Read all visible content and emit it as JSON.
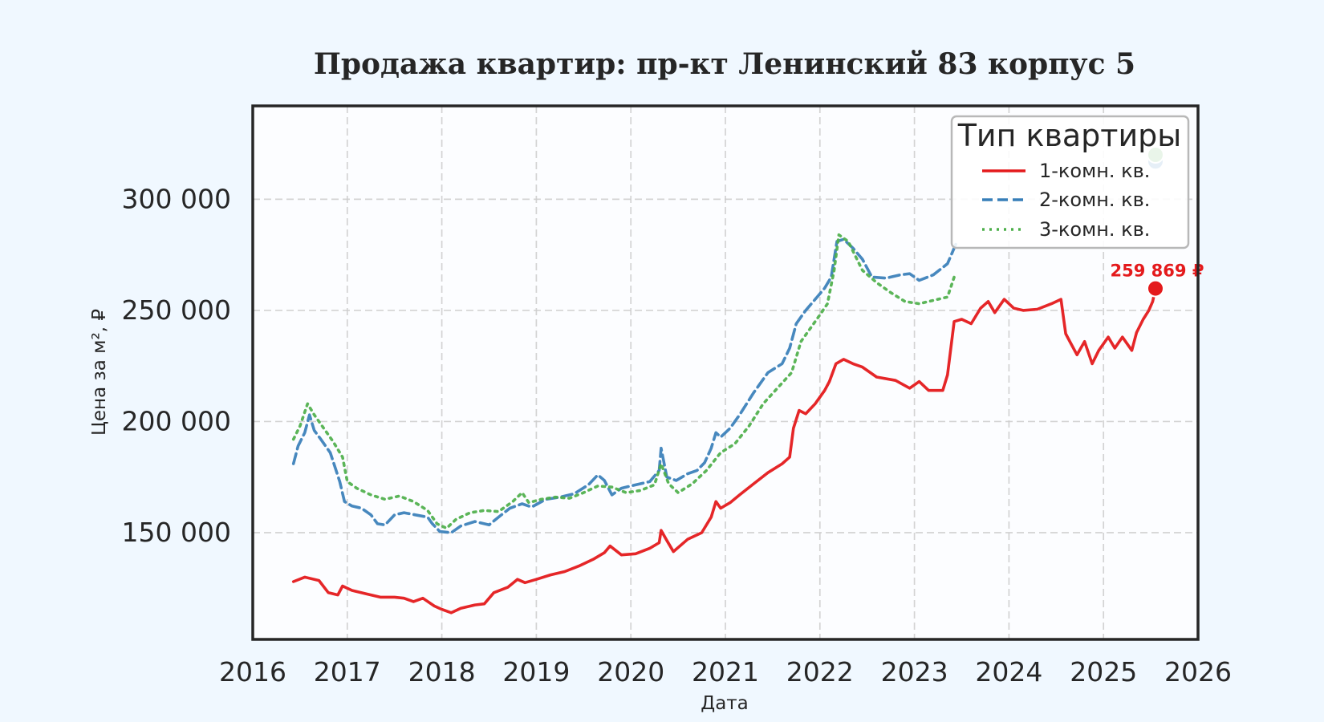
{
  "chart_data": {
    "type": "line",
    "title": "Продажа квартир: пр-кт Ленинский 83 корпус 5",
    "xlabel": "Дата",
    "ylabel": "Цена за м², ₽",
    "xlim": [
      2016,
      2026
    ],
    "ylim": [
      102000,
      342000
    ],
    "x_ticks": [
      2016,
      2017,
      2018,
      2019,
      2020,
      2021,
      2022,
      2023,
      2024,
      2025,
      2026
    ],
    "x_tick_labels": [
      "2016",
      "2017",
      "2018",
      "2019",
      "2020",
      "2021",
      "2022",
      "2023",
      "2024",
      "2025",
      "2026"
    ],
    "y_ticks": [
      150000,
      200000,
      250000,
      300000
    ],
    "y_tick_labels": [
      "150 000",
      "200 000",
      "250 000",
      "300 000"
    ],
    "grid": true,
    "legend_title": "Тип квартиры",
    "legend_position": "top-right",
    "series": [
      {
        "name": "1-комн. кв.",
        "color": "#e41a1c",
        "style": "solid",
        "points": [
          [
            2016.43,
            128000
          ],
          [
            2016.55,
            130000
          ],
          [
            2016.7,
            128500
          ],
          [
            2016.8,
            123000
          ],
          [
            2016.9,
            122000
          ],
          [
            2016.95,
            126000
          ],
          [
            2017.05,
            124000
          ],
          [
            2017.2,
            122500
          ],
          [
            2017.35,
            121000
          ],
          [
            2017.5,
            121000
          ],
          [
            2017.6,
            120500
          ],
          [
            2017.7,
            119000
          ],
          [
            2017.8,
            120500
          ],
          [
            2017.92,
            117000
          ],
          [
            2018.0,
            115500
          ],
          [
            2018.1,
            114000
          ],
          [
            2018.2,
            116000
          ],
          [
            2018.35,
            117500
          ],
          [
            2018.45,
            118000
          ],
          [
            2018.55,
            123000
          ],
          [
            2018.7,
            125500
          ],
          [
            2018.8,
            129000
          ],
          [
            2018.88,
            127500
          ],
          [
            2019.0,
            129000
          ],
          [
            2019.15,
            131000
          ],
          [
            2019.3,
            132500
          ],
          [
            2019.45,
            135000
          ],
          [
            2019.6,
            138000
          ],
          [
            2019.72,
            141000
          ],
          [
            2019.78,
            144000
          ],
          [
            2019.9,
            140000
          ],
          [
            2020.05,
            140500
          ],
          [
            2020.2,
            143000
          ],
          [
            2020.3,
            145500
          ],
          [
            2020.32,
            151000
          ],
          [
            2020.38,
            146500
          ],
          [
            2020.45,
            141500
          ],
          [
            2020.6,
            147000
          ],
          [
            2020.75,
            150000
          ],
          [
            2020.85,
            157000
          ],
          [
            2020.9,
            164000
          ],
          [
            2020.95,
            161000
          ],
          [
            2021.05,
            163500
          ],
          [
            2021.15,
            167000
          ],
          [
            2021.3,
            172000
          ],
          [
            2021.45,
            177000
          ],
          [
            2021.6,
            181000
          ],
          [
            2021.68,
            184000
          ],
          [
            2021.72,
            197000
          ],
          [
            2021.78,
            205000
          ],
          [
            2021.85,
            203500
          ],
          [
            2021.95,
            208000
          ],
          [
            2022.05,
            214000
          ],
          [
            2022.1,
            218000
          ],
          [
            2022.17,
            226000
          ],
          [
            2022.25,
            228000
          ],
          [
            2022.35,
            226000
          ],
          [
            2022.45,
            224500
          ],
          [
            2022.6,
            220000
          ],
          [
            2022.8,
            218500
          ],
          [
            2022.95,
            215000
          ],
          [
            2023.05,
            218000
          ],
          [
            2023.15,
            214000
          ],
          [
            2023.3,
            214000
          ],
          [
            2023.35,
            221000
          ],
          [
            2023.42,
            245000
          ],
          [
            2023.5,
            246000
          ],
          [
            2023.6,
            244000
          ],
          [
            2023.7,
            251000
          ],
          [
            2023.78,
            254000
          ],
          [
            2023.85,
            249000
          ],
          [
            2023.95,
            255000
          ],
          [
            2024.05,
            251000
          ],
          [
            2024.15,
            250000
          ],
          [
            2024.3,
            250500
          ],
          [
            2024.45,
            253000
          ],
          [
            2024.55,
            255000
          ],
          [
            2024.6,
            239500
          ],
          [
            2024.65,
            235500
          ],
          [
            2024.72,
            230000
          ],
          [
            2024.8,
            236000
          ],
          [
            2024.88,
            226000
          ],
          [
            2024.95,
            232000
          ],
          [
            2025.05,
            238000
          ],
          [
            2025.12,
            233000
          ],
          [
            2025.2,
            238000
          ],
          [
            2025.3,
            232000
          ],
          [
            2025.35,
            240000
          ],
          [
            2025.42,
            246000
          ],
          [
            2025.48,
            250000
          ],
          [
            2025.52,
            254000
          ],
          [
            2025.55,
            259869
          ]
        ]
      },
      {
        "name": "2-комн. кв.",
        "color": "#377eb8",
        "style": "dashed",
        "points": [
          [
            2016.43,
            181000
          ],
          [
            2016.48,
            189000
          ],
          [
            2016.55,
            195000
          ],
          [
            2016.6,
            203000
          ],
          [
            2016.65,
            196000
          ],
          [
            2016.72,
            192000
          ],
          [
            2016.82,
            186000
          ],
          [
            2016.92,
            173000
          ],
          [
            2016.97,
            164000
          ],
          [
            2017.05,
            162000
          ],
          [
            2017.15,
            161000
          ],
          [
            2017.25,
            158000
          ],
          [
            2017.32,
            154000
          ],
          [
            2017.4,
            153500
          ],
          [
            2017.5,
            158000
          ],
          [
            2017.6,
            159000
          ],
          [
            2017.72,
            158000
          ],
          [
            2017.85,
            157000
          ],
          [
            2017.9,
            154000
          ],
          [
            2017.98,
            150500
          ],
          [
            2018.1,
            150000
          ],
          [
            2018.2,
            153000
          ],
          [
            2018.35,
            155000
          ],
          [
            2018.5,
            153500
          ],
          [
            2018.6,
            157000
          ],
          [
            2018.72,
            161000
          ],
          [
            2018.85,
            163000
          ],
          [
            2018.95,
            161500
          ],
          [
            2019.1,
            165000
          ],
          [
            2019.25,
            166000
          ],
          [
            2019.4,
            167500
          ],
          [
            2019.55,
            171500
          ],
          [
            2019.65,
            176000
          ],
          [
            2019.72,
            173500
          ],
          [
            2019.8,
            167000
          ],
          [
            2019.9,
            170000
          ],
          [
            2020.05,
            171500
          ],
          [
            2020.2,
            173000
          ],
          [
            2020.3,
            178000
          ],
          [
            2020.32,
            188000
          ],
          [
            2020.38,
            175000
          ],
          [
            2020.48,
            173500
          ],
          [
            2020.6,
            176500
          ],
          [
            2020.7,
            178000
          ],
          [
            2020.78,
            181500
          ],
          [
            2020.85,
            188000
          ],
          [
            2020.9,
            195000
          ],
          [
            2020.95,
            193000
          ],
          [
            2021.05,
            197000
          ],
          [
            2021.15,
            203000
          ],
          [
            2021.3,
            213000
          ],
          [
            2021.45,
            222000
          ],
          [
            2021.6,
            226000
          ],
          [
            2021.68,
            233000
          ],
          [
            2021.75,
            244000
          ],
          [
            2021.85,
            250000
          ],
          [
            2021.95,
            255000
          ],
          [
            2022.05,
            260000
          ],
          [
            2022.12,
            265000
          ],
          [
            2022.18,
            281000
          ],
          [
            2022.25,
            282000
          ],
          [
            2022.35,
            278000
          ],
          [
            2022.45,
            273000
          ],
          [
            2022.55,
            265000
          ],
          [
            2022.7,
            264500
          ],
          [
            2022.85,
            266000
          ],
          [
            2022.95,
            266500
          ],
          [
            2023.05,
            263500
          ],
          [
            2023.2,
            266000
          ],
          [
            2023.35,
            271000
          ],
          [
            2023.45,
            281000
          ]
        ]
      },
      {
        "name": "3-комн. кв.",
        "color": "#4daf4a",
        "style": "dotted",
        "points": [
          [
            2016.43,
            192000
          ],
          [
            2016.5,
            198000
          ],
          [
            2016.58,
            208000
          ],
          [
            2016.65,
            203000
          ],
          [
            2016.75,
            197000
          ],
          [
            2016.85,
            191000
          ],
          [
            2016.95,
            184000
          ],
          [
            2017.0,
            173000
          ],
          [
            2017.1,
            170000
          ],
          [
            2017.25,
            167000
          ],
          [
            2017.4,
            165000
          ],
          [
            2017.55,
            166500
          ],
          [
            2017.7,
            164000
          ],
          [
            2017.85,
            160000
          ],
          [
            2017.95,
            154000
          ],
          [
            2018.05,
            152000
          ],
          [
            2018.15,
            156000
          ],
          [
            2018.3,
            159000
          ],
          [
            2018.45,
            160000
          ],
          [
            2018.6,
            159500
          ],
          [
            2018.75,
            164000
          ],
          [
            2018.85,
            168000
          ],
          [
            2018.92,
            163500
          ],
          [
            2019.05,
            165000
          ],
          [
            2019.2,
            166000
          ],
          [
            2019.35,
            165500
          ],
          [
            2019.5,
            168000
          ],
          [
            2019.65,
            171000
          ],
          [
            2019.8,
            170500
          ],
          [
            2019.95,
            168000
          ],
          [
            2020.1,
            169000
          ],
          [
            2020.25,
            171500
          ],
          [
            2020.32,
            181000
          ],
          [
            2020.4,
            172000
          ],
          [
            2020.5,
            168000
          ],
          [
            2020.65,
            172000
          ],
          [
            2020.8,
            178000
          ],
          [
            2020.95,
            186000
          ],
          [
            2021.1,
            190000
          ],
          [
            2021.25,
            198000
          ],
          [
            2021.4,
            208000
          ],
          [
            2021.55,
            215000
          ],
          [
            2021.7,
            222000
          ],
          [
            2021.8,
            236000
          ],
          [
            2021.9,
            242000
          ],
          [
            2022.0,
            248000
          ],
          [
            2022.08,
            253000
          ],
          [
            2022.15,
            268000
          ],
          [
            2022.2,
            284000
          ],
          [
            2022.3,
            281000
          ],
          [
            2022.45,
            268000
          ],
          [
            2022.6,
            262500
          ],
          [
            2022.75,
            258000
          ],
          [
            2022.9,
            254000
          ],
          [
            2023.05,
            253000
          ],
          [
            2023.2,
            254500
          ],
          [
            2023.35,
            256000
          ],
          [
            2023.42,
            265000
          ]
        ]
      }
    ],
    "annotation": {
      "text": "259 869 ₽",
      "x": 2025.55,
      "y": 259869,
      "color": "#e41a1c"
    },
    "end_markers": [
      {
        "series": "2-комн. кв.",
        "x": 2025.55,
        "y": 317000,
        "color": "#377eb8"
      },
      {
        "series": "3-комн. кв.",
        "x": 2025.55,
        "y": 320000,
        "color": "#4daf4a"
      }
    ]
  }
}
